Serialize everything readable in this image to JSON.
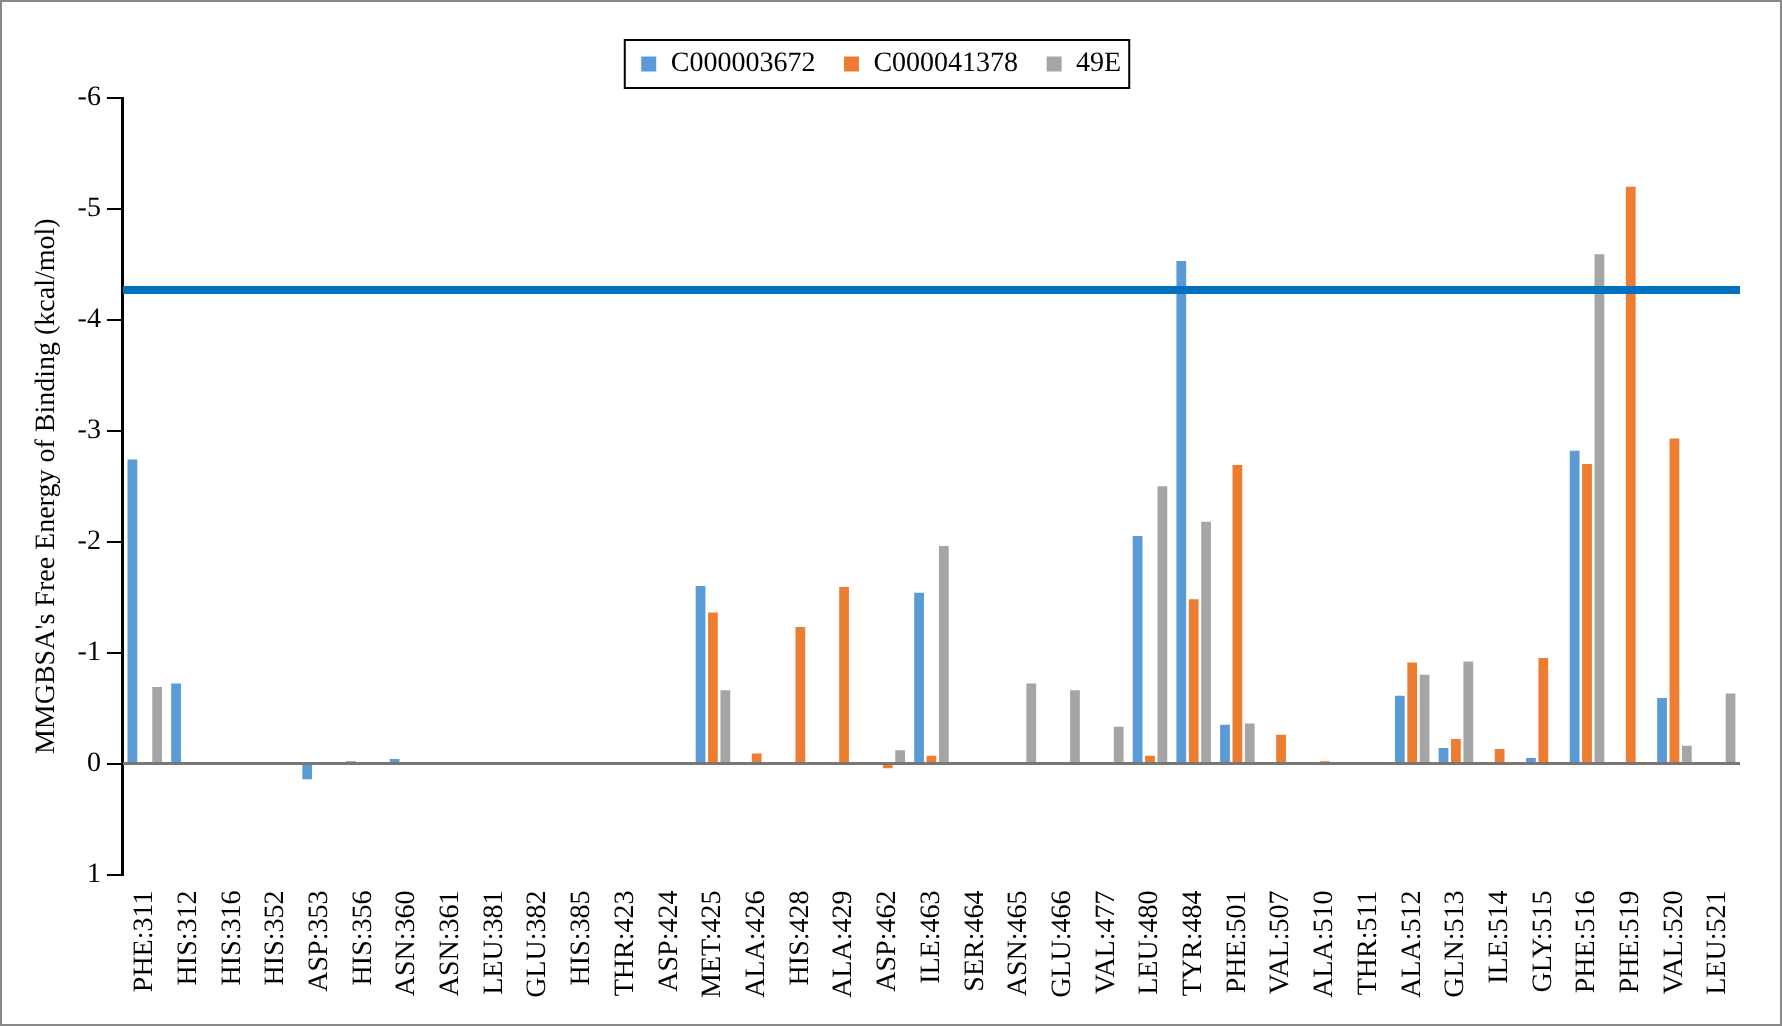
{
  "chart_data": {
    "type": "bar",
    "ylabel": "MMGBSA's Free Energy of Binding (kcal/mol)",
    "categories": [
      "PHE:311",
      "HIS:312",
      "HIS:316",
      "HIS:352",
      "ASP:353",
      "HIS:356",
      "ASN:360",
      "ASN:361",
      "LEU:381",
      "GLU:382",
      "HIS:385",
      "THR:423",
      "ASP:424",
      "MET:425",
      "ALA:426",
      "HIS:428",
      "ALA:429",
      "ASP:462",
      "ILE:463",
      "SER:464",
      "ASN:465",
      "GLU:466",
      "VAL:477",
      "LEU:480",
      "TYR:484",
      "PHE:501",
      "VAL:507",
      "ALA:510",
      "THR:511",
      "ALA:512",
      "GLN:513",
      "ILE:514",
      "GLY:515",
      "PHE:516",
      "PHE:519",
      "VAL:520",
      "LEU:521"
    ],
    "series": [
      {
        "name": "C000003672",
        "color": "#5b9bd5",
        "values": [
          -2.75,
          -0.73,
          0,
          0,
          0.15,
          -0.03,
          -0.05,
          0,
          0,
          0,
          0,
          0,
          0,
          -1.61,
          0,
          0,
          0,
          0,
          -1.55,
          0,
          0,
          0,
          0,
          -2.06,
          -4.54,
          -0.36,
          0,
          0,
          0,
          -0.62,
          -0.15,
          0,
          -0.06,
          -2.83,
          0,
          -0.6,
          0
        ]
      },
      {
        "name": "C000041378",
        "color": "#ed7d31",
        "values": [
          0,
          0,
          0,
          0,
          null,
          0,
          0,
          0,
          0,
          0,
          0,
          0,
          0,
          -1.37,
          -0.1,
          -1.24,
          -1.6,
          0.05,
          -0.08,
          0,
          0,
          0,
          0,
          -0.08,
          -1.49,
          -2.7,
          -0.27,
          -0.03,
          0,
          -0.92,
          -0.23,
          -0.14,
          -0.96,
          -2.71,
          -5.21,
          -2.94,
          0
        ]
      },
      {
        "name": "49E",
        "color": "#a5a5a5",
        "values": [
          -0.7,
          0,
          0,
          0,
          0,
          0,
          0,
          0,
          0,
          0,
          0,
          0,
          0,
          -0.67,
          0,
          0,
          0,
          -0.13,
          -1.97,
          0,
          -0.73,
          -0.67,
          -0.34,
          -2.51,
          -2.19,
          -0.37,
          0,
          0,
          0,
          -0.81,
          -0.93,
          0,
          0,
          -4.6,
          0,
          -0.17,
          -0.64
        ]
      }
    ],
    "ylim": [
      1,
      -6
    ],
    "yticks": [
      1,
      0,
      -1,
      -2,
      -3,
      -4,
      -5,
      -6
    ],
    "legend": "top",
    "ref_lines": [
      {
        "axis": "y",
        "value": -4.27,
        "color": "#0070c0"
      }
    ]
  }
}
